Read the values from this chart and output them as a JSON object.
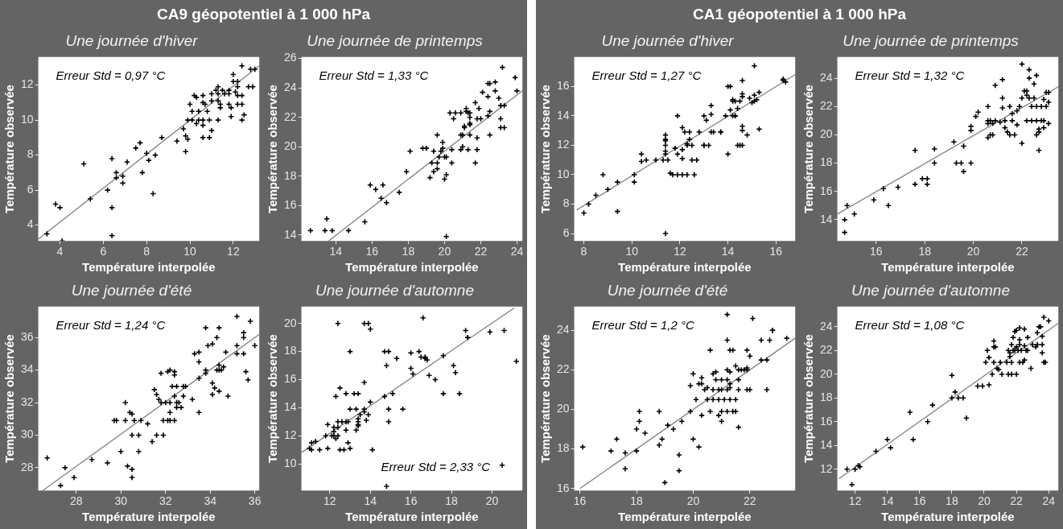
{
  "chart_data": [
    {
      "type": "scatter",
      "title": "CA9 géopotentiel à 1 000 hPa",
      "subtitle": "Une journée d'hiver",
      "xlabel": "Température interpolée",
      "ylabel": "Température observée",
      "xlim": [
        3,
        13.2
      ],
      "ylim": [
        3.1,
        13.6
      ],
      "xticks": [
        4,
        6,
        8,
        10,
        12
      ],
      "yticks": [
        4,
        6,
        8,
        10,
        12
      ],
      "grid": false,
      "legend": false,
      "annotations": [
        "Erreur Std = 0,97 °C"
      ],
      "series": [
        {
          "type": "scatter",
          "color": "#000000",
          "marker": "cross",
          "x": [
            3.4,
            3.8,
            4.0,
            4.1,
            5.1,
            5.4,
            6.2,
            6.4,
            6.4,
            6.4,
            6.6,
            6.6,
            6.9,
            6.9,
            7.1,
            7.5,
            7.7,
            7.8,
            8.0,
            8.1,
            8.3,
            8.4,
            8.7,
            9.4,
            9.7,
            9.8,
            9.8,
            9.9,
            9.9,
            10.0,
            10.1,
            10.1,
            10.2,
            10.3,
            10.3,
            10.4,
            10.4,
            10.6,
            10.6,
            10.6,
            10.6,
            10.6,
            10.7,
            10.8,
            10.9,
            10.9,
            11.0,
            11.0,
            11.0,
            11.2,
            11.3,
            11.3,
            11.3,
            11.3,
            11.4,
            11.4,
            11.5,
            11.6,
            11.8,
            11.8,
            11.8,
            11.9,
            11.9,
            12.0,
            12.1,
            12.2,
            12.2,
            12.2,
            12.2,
            12.4,
            12.4,
            12.4,
            12.4,
            12.5,
            12.7,
            12.8,
            12.9,
            13.0,
            12.0
          ],
          "values": [
            3.5,
            5.2,
            5.0,
            3.1,
            7.5,
            5.5,
            6.0,
            7.8,
            5.0,
            3.4,
            7.0,
            6.7,
            6.8,
            6.4,
            7.6,
            8.4,
            8.7,
            7.0,
            8.1,
            7.7,
            5.8,
            8.0,
            9.0,
            8.8,
            9.5,
            8.2,
            9.1,
            8.9,
            10.0,
            10.9,
            10.5,
            10.0,
            11.4,
            11.3,
            9.8,
            10.0,
            10.5,
            11.0,
            10.0,
            9.7,
            9.0,
            11.4,
            10.9,
            10.5,
            10.0,
            9.0,
            11.5,
            11.1,
            9.4,
            11.7,
            10.0,
            11.5,
            11.1,
            11.9,
            10.9,
            10.7,
            11.7,
            11.5,
            11.5,
            10.9,
            11.7,
            10.2,
            10.7,
            12.2,
            11.6,
            12.2,
            11.9,
            11.4,
            10.9,
            10.9,
            10.0,
            13.1,
            11.4,
            10.3,
            11.9,
            12.9,
            11.9,
            12.9,
            12.6
          ]
        },
        {
          "type": "line",
          "color": "#808080",
          "marker": "none",
          "x": [
            3.0,
            13.2
          ],
          "values": [
            3.2,
            13.1
          ]
        }
      ]
    },
    {
      "type": "scatter",
      "subtitle": "Une journée de printemps",
      "xlabel": "Température interpolée",
      "ylabel": "Température observée",
      "xlim": [
        12.1,
        24.3
      ],
      "ylim": [
        13.6,
        26.1
      ],
      "xticks": [
        14,
        16,
        18,
        20,
        22,
        24
      ],
      "yticks": [
        14,
        16,
        18,
        20,
        22,
        24,
        26
      ],
      "grid": false,
      "legend": false,
      "annotations": [
        "Erreur Std = 1,33 °C"
      ],
      "series": [
        {
          "type": "scatter",
          "color": "#000000",
          "marker": "cross",
          "x": [
            12.6,
            13.4,
            13.5,
            13.8,
            14.7,
            15.6,
            15.9,
            16.2,
            16.5,
            16.6,
            16.8,
            17.5,
            17.9,
            18.1,
            18.8,
            19.0,
            19.2,
            19.3,
            19.4,
            19.4,
            19.6,
            19.6,
            19.7,
            19.6,
            19.8,
            19.9,
            19.9,
            20.0,
            20.0,
            20.1,
            20.1,
            20.1,
            20.3,
            20.4,
            20.4,
            20.5,
            20.6,
            20.9,
            20.9,
            21.0,
            20.9,
            21.0,
            21.1,
            21.1,
            21.2,
            21.2,
            21.3,
            21.3,
            21.4,
            21.4,
            21.4,
            21.4,
            21.4,
            21.7,
            21.7,
            21.8,
            21.8,
            21.9,
            21.8,
            22.0,
            22.1,
            22.4,
            22.4,
            22.4,
            22.5,
            22.5,
            22.5,
            22.8,
            22.8,
            23.0,
            23.1,
            23.1,
            23.2,
            23.1,
            23.3,
            23.3,
            23.9,
            24.0
          ],
          "values": [
            14.3,
            14.3,
            15.1,
            14.3,
            14.3,
            14.9,
            17.4,
            17.1,
            16.5,
            17.4,
            16.2,
            16.9,
            18.3,
            19.7,
            19.9,
            19.9,
            17.9,
            18.9,
            19.7,
            18.3,
            18.9,
            18.5,
            19.3,
            20.8,
            19.7,
            19.9,
            20.3,
            19.3,
            17.8,
            19.3,
            18.1,
            13.9,
            22.3,
            19.8,
            18.9,
            21.9,
            22.3,
            22.3,
            20.8,
            20.8,
            19.8,
            20.0,
            21.4,
            21.3,
            22.6,
            22.4,
            19.8,
            22.3,
            21.5,
            22.3,
            22.0,
            21.6,
            20.8,
            18.9,
            23.0,
            21.9,
            19.8,
            22.6,
            20.6,
            21.9,
            23.7,
            23.4,
            24.3,
            22.1,
            20.8,
            24.3,
            22.4,
            24.4,
            23.8,
            23.3,
            21.9,
            22.8,
            25.4,
            21.3,
            21.3,
            22.8,
            24.7,
            23.8
          ]
        },
        {
          "type": "line",
          "color": "#808080",
          "marker": "none",
          "x": [
            13.6,
            24.3
          ],
          "values": [
            13.6,
            23.8
          ]
        }
      ]
    },
    {
      "type": "scatter",
      "subtitle": "Une journée d'été",
      "xlabel": "Température interpolée",
      "ylabel": "Température observée",
      "xlim": [
        26.3,
        36.2
      ],
      "ylim": [
        26.6,
        37.9
      ],
      "xticks": [
        28,
        30,
        32,
        34,
        36
      ],
      "yticks": [
        28,
        30,
        32,
        34,
        36
      ],
      "grid": false,
      "legend": false,
      "annotations": [
        "Erreur Std = 1,24 °C"
      ],
      "series": [
        {
          "type": "scatter",
          "color": "#000000",
          "marker": "cross",
          "x": [
            26.7,
            27.3,
            27.5,
            27.9,
            28.7,
            29.4,
            29.7,
            29.8,
            30.0,
            30.2,
            30.2,
            30.3,
            30.4,
            30.5,
            30.5,
            30.5,
            30.5,
            30.6,
            30.8,
            30.8,
            30.9,
            31.2,
            31.4,
            31.5,
            31.6,
            31.6,
            31.7,
            31.8,
            31.8,
            31.9,
            31.9,
            32.0,
            32.1,
            32.1,
            32.2,
            32.2,
            32.2,
            32.2,
            32.3,
            32.4,
            32.4,
            32.4,
            32.4,
            32.5,
            32.5,
            32.5,
            32.6,
            32.7,
            32.8,
            32.8,
            32.9,
            33.2,
            33.3,
            33.5,
            33.5,
            33.5,
            33.5,
            33.8,
            33.8,
            33.8,
            33.9,
            34.1,
            34.1,
            34.1,
            34.2,
            34.3,
            34.3,
            34.4,
            34.4,
            34.4,
            34.4,
            34.5,
            34.6,
            34.7,
            34.8,
            35.2,
            35.2,
            35.2,
            35.5,
            35.5,
            35.5,
            35.6,
            35.7,
            35.8,
            36.0
          ],
          "values": [
            28.6,
            26.9,
            28.0,
            27.4,
            28.5,
            28.3,
            30.9,
            30.9,
            29.0,
            30.9,
            32.0,
            28.1,
            31.4,
            31.3,
            27.9,
            27.4,
            30.0,
            30.9,
            29.0,
            30.0,
            30.9,
            30.7,
            29.6,
            32.8,
            32.5,
            30.0,
            32.2,
            32.0,
            33.8,
            30.9,
            30.0,
            32.0,
            30.9,
            33.9,
            32.0,
            34.0,
            31.4,
            30.9,
            33.0,
            33.7,
            33.9,
            30.9,
            32.4,
            33.0,
            32.0,
            31.7,
            32.0,
            31.7,
            33.0,
            32.4,
            33.0,
            32.2,
            35.0,
            31.4,
            35.1,
            34.5,
            33.5,
            34.0,
            33.8,
            36.6,
            35.5,
            35.6,
            32.5,
            33.2,
            32.9,
            34.0,
            36.0,
            34.3,
            36.6,
            34.0,
            32.7,
            34.0,
            34.2,
            35.1,
            32.4,
            35.5,
            35.0,
            37.3,
            36.0,
            35.0,
            36.3,
            33.9,
            33.4,
            37.0,
            35.5
          ]
        },
        {
          "type": "line",
          "color": "#808080",
          "marker": "none",
          "x": [
            26.5,
            36.2
          ],
          "values": [
            26.6,
            36.2
          ]
        }
      ]
    },
    {
      "type": "scatter",
      "subtitle": "Une journée d'automne",
      "xlabel": "Température interpolée",
      "ylabel": "Température observée",
      "xlim": [
        10.6,
        21.5
      ],
      "ylim": [
        8.1,
        21.2
      ],
      "xticks": [
        12,
        14,
        16,
        18,
        20
      ],
      "yticks": [
        10,
        12,
        14,
        16,
        18,
        20
      ],
      "grid": false,
      "legend": false,
      "annotations": [
        "Erreur Std = 2,33 °C"
      ],
      "series": [
        {
          "type": "scatter",
          "color": "#000000",
          "marker": "cross",
          "x": [
            11.0,
            11.1,
            11.1,
            11.3,
            11.5,
            11.8,
            11.9,
            11.9,
            12.1,
            12.2,
            12.2,
            12.2,
            12.3,
            12.3,
            12.4,
            12.4,
            12.4,
            12.4,
            12.5,
            12.5,
            12.6,
            12.7,
            12.8,
            12.8,
            12.8,
            12.9,
            13.0,
            12.9,
            13.0,
            13.0,
            13.2,
            13.3,
            13.3,
            13.4,
            13.4,
            13.4,
            13.4,
            13.4,
            13.5,
            13.7,
            13.7,
            13.7,
            13.7,
            13.8,
            13.9,
            13.9,
            14.0,
            14.0,
            14.1,
            14.7,
            14.7,
            14.8,
            14.9,
            14.9,
            14.9,
            15.1,
            15.3,
            15.6,
            16.0,
            16.0,
            16.1,
            16.4,
            16.5,
            16.6,
            16.7,
            16.7,
            16.8,
            16.9,
            17.2,
            17.6,
            17.6,
            18.1,
            18.2,
            18.4,
            18.7,
            18.8,
            19.9,
            20.5,
            20.6,
            21.2,
            14.8
          ],
          "values": [
            11.1,
            11.5,
            11.0,
            11.6,
            11.0,
            12.0,
            12.8,
            11.1,
            12.0,
            12.6,
            12.3,
            12.0,
            11.8,
            14.8,
            12.0,
            13.0,
            20.0,
            12.6,
            15.4,
            11.0,
            13.0,
            11.0,
            15.0,
            13.0,
            12.4,
            11.5,
            18.0,
            13.0,
            11.1,
            13.9,
            15.0,
            12.4,
            13.9,
            13.2,
            13.0,
            12.8,
            12.7,
            15.0,
            13.5,
            15.8,
            20.0,
            13.9,
            13.7,
            13.1,
            13.5,
            20.0,
            19.6,
            14.4,
            11.0,
            14.8,
            18.0,
            17.0,
            18.0,
            13.9,
            13.0,
            15.0,
            17.5,
            13.9,
            16.8,
            17.9,
            16.4,
            18.0,
            17.6,
            20.4,
            17.6,
            17.5,
            17.4,
            16.3,
            16.0,
            17.7,
            15.0,
            17.0,
            16.5,
            15.0,
            19.5,
            19.0,
            19.4,
            9.9,
            19.5,
            17.3,
            8.4
          ]
        },
        {
          "type": "line",
          "color": "#808080",
          "marker": "none",
          "x": [
            10.6,
            21.1
          ],
          "values": [
            10.8,
            21.1
          ]
        }
      ]
    },
    {
      "type": "scatter",
      "title": "CA1 géopotentiel à 1 000 hPa",
      "subtitle": "Une journée d'hiver",
      "xlabel": "Température interpolée",
      "ylabel": "Température observée",
      "xlim": [
        7.6,
        16.8
      ],
      "ylim": [
        5.5,
        18
      ],
      "xticks": [
        8,
        10,
        12,
        14,
        16
      ],
      "yticks": [
        6,
        8,
        10,
        12,
        14,
        16
      ],
      "grid": false,
      "legend": false,
      "annotations": [
        "Erreur Std = 1,27 °C"
      ],
      "series": [
        {
          "type": "scatter",
          "color": "#000000",
          "marker": "cross",
          "x": [
            8.0,
            8.2,
            8.5,
            8.8,
            9.0,
            9.4,
            9.4,
            10.1,
            10.1,
            10.4,
            10.4,
            10.6,
            11.0,
            11.3,
            11.4,
            11.4,
            11.4,
            11.4,
            11.4,
            11.4,
            11.4,
            11.5,
            11.6,
            11.7,
            11.8,
            11.9,
            11.9,
            11.9,
            12.1,
            12.1,
            12.1,
            12.1,
            12.2,
            12.3,
            12.3,
            12.3,
            12.4,
            12.4,
            12.5,
            12.5,
            12.6,
            12.7,
            12.8,
            13.0,
            13.0,
            13.0,
            13.1,
            13.2,
            13.3,
            13.3,
            13.3,
            13.4,
            13.7,
            13.7,
            13.9,
            14.0,
            14.0,
            14.1,
            14.1,
            14.2,
            14.2,
            14.3,
            14.2,
            14.3,
            14.3,
            14.4,
            14.4,
            14.5,
            14.5,
            14.6,
            14.6,
            14.6,
            14.6,
            14.6,
            14.6,
            14.8,
            14.9,
            15.0,
            15.1,
            15.1,
            15.2,
            15.3,
            15.3,
            15.1,
            16.3,
            16.3,
            16.4
          ],
          "values": [
            7.4,
            8.0,
            8.6,
            10.0,
            9.0,
            7.5,
            9.5,
            10.0,
            9.5,
            11.4,
            10.9,
            11.0,
            11.0,
            11.0,
            11.4,
            11.6,
            12.7,
            12.4,
            12.3,
            12.0,
            6.0,
            11.0,
            10.1,
            10.0,
            11.8,
            10.0,
            14.0,
            11.4,
            11.7,
            10.0,
            11.1,
            13.2,
            12.9,
            10.0,
            12.1,
            12.0,
            12.9,
            12.4,
            11.0,
            12.0,
            10.0,
            11.0,
            12.9,
            12.0,
            12.0,
            14.0,
            13.7,
            12.0,
            14.1,
            14.7,
            12.9,
            12.9,
            12.9,
            12.9,
            14.0,
            11.4,
            16.0,
            16.0,
            14.4,
            15.0,
            14.0,
            14.0,
            15.1,
            14.0,
            15.0,
            14.5,
            12.0,
            15.0,
            12.0,
            15.3,
            12.0,
            15.5,
            16.4,
            13.3,
            13.0,
            12.7,
            15.2,
            14.9,
            15.4,
            15.0,
            15.1,
            15.6,
            13.1,
            17.4,
            16.5,
            16.4,
            16.3
          ]
        },
        {
          "type": "line",
          "color": "#808080",
          "marker": "none",
          "x": [
            7.7,
            16.8
          ],
          "values": [
            7.6,
            16.8
          ]
        }
      ]
    },
    {
      "type": "scatter",
      "subtitle": "Une journée de printemps",
      "xlabel": "Température interpolée",
      "ylabel": "Température observée",
      "xlim": [
        14.4,
        23.5
      ],
      "ylim": [
        12.5,
        25.5
      ],
      "xticks": [
        16,
        18,
        20,
        22
      ],
      "yticks": [
        14,
        16,
        18,
        20,
        22,
        24
      ],
      "grid": false,
      "legend": false,
      "annotations": [
        "Erreur Std = 1,32 °C"
      ],
      "series": [
        {
          "type": "scatter",
          "color": "#000000",
          "marker": "cross",
          "x": [
            14.7,
            14.7,
            14.8,
            15.1,
            15.9,
            16.3,
            16.5,
            16.9,
            17.6,
            17.6,
            17.9,
            18.1,
            18.1,
            18.4,
            18.4,
            19.2,
            19.3,
            19.5,
            19.6,
            19.6,
            19.9,
            19.9,
            19.9,
            20.1,
            20.2,
            20.6,
            20.6,
            20.6,
            20.7,
            20.6,
            20.7,
            20.8,
            20.9,
            20.8,
            20.9,
            21.1,
            21.2,
            21.2,
            21.3,
            21.2,
            21.3,
            21.4,
            21.5,
            21.5,
            21.6,
            21.6,
            21.7,
            21.8,
            21.8,
            21.9,
            22.0,
            22.0,
            22.0,
            22.1,
            22.2,
            22.2,
            22.2,
            22.3,
            22.3,
            22.3,
            22.4,
            22.4,
            22.5,
            22.5,
            22.6,
            22.6,
            22.6,
            22.6,
            22.7,
            22.7,
            22.7,
            22.8,
            22.8,
            22.9,
            22.9,
            22.9,
            23.0,
            23.0,
            23.1,
            23.1,
            23.1
          ],
          "values": [
            14.0,
            13.1,
            15.0,
            14.4,
            15.4,
            16.2,
            15.0,
            16.3,
            18.9,
            16.5,
            16.9,
            16.9,
            16.5,
            19.0,
            18.0,
            19.5,
            18.0,
            18.0,
            17.4,
            19.2,
            20.6,
            20.3,
            18.0,
            21.3,
            21.6,
            22.0,
            20.8,
            19.8,
            20.0,
            21.0,
            21.0,
            20.0,
            23.5,
            20.8,
            21.0,
            20.9,
            22.6,
            23.9,
            21.0,
            21.9,
            20.5,
            20.2,
            20.0,
            22.0,
            21.0,
            21.5,
            20.0,
            21.7,
            20.7,
            22.0,
            19.4,
            22.6,
            25.0,
            23.1,
            21.0,
            22.8,
            23.1,
            22.6,
            24.6,
            24.0,
            22.0,
            21.0,
            22.6,
            23.6,
            20.0,
            21.0,
            22.0,
            24.2,
            20.4,
            18.9,
            20.2,
            21.0,
            22.0,
            22.5,
            20.5,
            21.0,
            23.0,
            22.0,
            23.0,
            22.3,
            20.8
          ]
        },
        {
          "type": "line",
          "color": "#808080",
          "marker": "none",
          "x": [
            14.4,
            23.5
          ],
          "values": [
            14.4,
            23.4
          ]
        }
      ]
    },
    {
      "type": "scatter",
      "subtitle": "Une journée d'été",
      "xlabel": "Température interpolée",
      "ylabel": "Température observée",
      "xlim": [
        15.8,
        23.6
      ],
      "ylim": [
        15.9,
        25.2
      ],
      "xticks": [
        16,
        18,
        20,
        22
      ],
      "yticks": [
        16,
        18,
        20,
        22,
        24
      ],
      "grid": false,
      "legend": false,
      "annotations": [
        "Erreur Std = 1,2 °C"
      ],
      "series": [
        {
          "type": "scatter",
          "color": "#000000",
          "marker": "cross",
          "x": [
            16.1,
            17.1,
            17.3,
            17.6,
            17.6,
            18.0,
            18.0,
            18.1,
            18.1,
            18.3,
            18.8,
            18.8,
            18.9,
            19.0,
            19.1,
            19.3,
            19.5,
            19.5,
            19.6,
            19.9,
            19.9,
            20.0,
            20.0,
            20.1,
            20.2,
            20.2,
            20.3,
            20.3,
            20.3,
            20.4,
            20.5,
            20.5,
            20.6,
            20.6,
            20.7,
            20.7,
            20.7,
            20.8,
            20.8,
            20.9,
            20.9,
            20.9,
            21.0,
            21.0,
            21.0,
            21.0,
            21.1,
            21.2,
            21.2,
            21.2,
            21.2,
            21.2,
            21.2,
            21.3,
            21.3,
            21.3,
            21.3,
            21.4,
            21.3,
            21.4,
            21.5,
            21.5,
            21.5,
            21.6,
            21.6,
            21.6,
            21.6,
            21.7,
            21.8,
            21.9,
            21.9,
            21.9,
            21.9,
            22.0,
            22.0,
            22.1,
            22.4,
            22.4,
            22.6,
            22.6,
            22.7,
            22.8,
            22.8,
            23.3
          ],
          "values": [
            18.1,
            17.9,
            18.5,
            17.0,
            17.8,
            17.9,
            19.0,
            19.9,
            19.4,
            18.8,
            18.2,
            19.9,
            18.5,
            16.3,
            19.2,
            19.0,
            17.7,
            16.9,
            19.4,
            21.2,
            19.9,
            21.8,
            18.5,
            20.5,
            18.1,
            21.3,
            21.3,
            21.6,
            19.7,
            21.0,
            21.1,
            20.5,
            19.9,
            23.0,
            21.0,
            21.8,
            20.5,
            21.5,
            21.9,
            20.5,
            21.0,
            19.7,
            19.9,
            19.4,
            21.5,
            21.0,
            20.5,
            21.0,
            24.8,
            23.5,
            19.9,
            22.0,
            21.5,
            20.5,
            23.0,
            21.3,
            21.1,
            23.0,
            21.9,
            19.9,
            22.2,
            19.9,
            20.5,
            21.0,
            19.1,
            21.5,
            22.0,
            22.0,
            22.0,
            22.0,
            22.1,
            23.0,
            21.0,
            21.0,
            22.7,
            24.6,
            22.5,
            23.5,
            22.5,
            21.0,
            23.5,
            24.0,
            24.0,
            23.6
          ]
        },
        {
          "type": "line",
          "color": "#808080",
          "marker": "none",
          "x": [
            16.0,
            23.6
          ],
          "values": [
            16.0,
            23.6
          ]
        }
      ]
    },
    {
      "type": "scatter",
      "subtitle": "Une journée d'automne",
      "xlabel": "Température interpolée",
      "ylabel": "Température observée",
      "xlim": [
        10.9,
        24.6
      ],
      "ylim": [
        10.2,
        25.7
      ],
      "xticks": [
        12,
        14,
        16,
        18,
        20,
        22,
        24
      ],
      "yticks": [
        12,
        14,
        16,
        18,
        20,
        22,
        24
      ],
      "grid": false,
      "legend": false,
      "annotations": [
        "Erreur Std = 1,08 °C"
      ],
      "series": [
        {
          "type": "scatter",
          "color": "#000000",
          "marker": "cross",
          "x": [
            11.5,
            11.8,
            12.0,
            12.2,
            12.3,
            13.3,
            14.0,
            14.2,
            15.4,
            15.6,
            16.5,
            16.8,
            18.0,
            18.0,
            18.2,
            18.4,
            18.7,
            18.9,
            19.6,
            19.9,
            20.1,
            20.2,
            20.3,
            20.3,
            20.5,
            20.6,
            20.6,
            20.6,
            20.7,
            20.8,
            20.9,
            21.0,
            21.1,
            21.4,
            21.5,
            21.5,
            21.6,
            21.6,
            21.7,
            21.7,
            21.7,
            21.8,
            21.8,
            21.9,
            21.9,
            22.0,
            22.0,
            22.0,
            22.1,
            22.2,
            22.2,
            22.2,
            22.2,
            22.3,
            22.4,
            22.5,
            22.5,
            22.5,
            22.6,
            22.7,
            22.7,
            22.9,
            23.0,
            23.2,
            23.3,
            23.3,
            23.4,
            23.5,
            23.6,
            23.6,
            23.6,
            23.7,
            23.7,
            23.8,
            24.0
          ],
          "values": [
            12.0,
            10.7,
            12.0,
            12.3,
            12.2,
            13.5,
            14.5,
            13.8,
            16.8,
            14.5,
            16.0,
            17.4,
            19.9,
            18.0,
            18.5,
            18.0,
            18.0,
            16.3,
            19.0,
            19.0,
            21.0,
            22.0,
            21.4,
            19.1,
            20.0,
            21.0,
            22.3,
            22.8,
            22.3,
            20.5,
            20.4,
            21.0,
            20.0,
            21.0,
            22.0,
            20.0,
            21.8,
            21.5,
            21.0,
            20.0,
            22.5,
            22.0,
            23.1,
            23.6,
            22.0,
            22.3,
            20.0,
            23.7,
            22.0,
            23.9,
            22.9,
            21.0,
            22.5,
            22.0,
            21.0,
            22.4,
            23.8,
            21.2,
            22.0,
            23.1,
            22.0,
            20.5,
            22.5,
            22.3,
            22.5,
            23.5,
            24.0,
            24.0,
            21.8,
            22.5,
            23.2,
            24.8,
            21.0,
            21.0,
            24.5
          ]
        },
        {
          "type": "line",
          "color": "#808080",
          "marker": "none",
          "x": [
            11.0,
            24.6
          ],
          "values": [
            11.2,
            24.3
          ]
        }
      ]
    }
  ]
}
